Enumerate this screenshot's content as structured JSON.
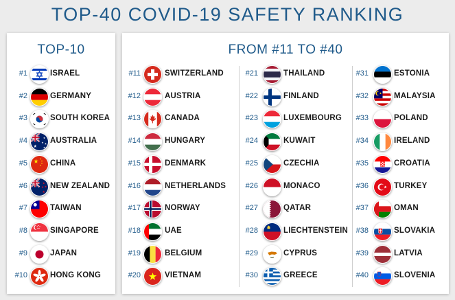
{
  "title": "TOP-40 COVID-19 SAFETY RANKING",
  "left_panel": {
    "heading": "TOP-10",
    "items": [
      {
        "rank": "#1",
        "country": "ISRAEL"
      },
      {
        "rank": "#2",
        "country": "GERMANY"
      },
      {
        "rank": "#3",
        "country": "SOUTH KOREA"
      },
      {
        "rank": "#4",
        "country": "AUSTRALIA"
      },
      {
        "rank": "#5",
        "country": "CHINA"
      },
      {
        "rank": "#6",
        "country": "NEW ZEALAND"
      },
      {
        "rank": "#7",
        "country": "TAIWAN"
      },
      {
        "rank": "#8",
        "country": "SINGAPORE"
      },
      {
        "rank": "#9",
        "country": "JAPAN"
      },
      {
        "rank": "#10",
        "country": "HONG KONG"
      }
    ]
  },
  "right_panel": {
    "heading": "FROM #11 TO #40",
    "columns": [
      [
        {
          "rank": "#11",
          "country": "SWITZERLAND"
        },
        {
          "rank": "#12",
          "country": "AUSTRIA"
        },
        {
          "rank": "#13",
          "country": "CANADA"
        },
        {
          "rank": "#14",
          "country": "HUNGARY"
        },
        {
          "rank": "#15",
          "country": "DENMARK"
        },
        {
          "rank": "#16",
          "country": "NETHERLANDS"
        },
        {
          "rank": "#17",
          "country": "NORWAY"
        },
        {
          "rank": "#18",
          "country": "UAE"
        },
        {
          "rank": "#19",
          "country": "BELGIUM"
        },
        {
          "rank": "#20",
          "country": "VIETNAM"
        }
      ],
      [
        {
          "rank": "#21",
          "country": "THAILAND"
        },
        {
          "rank": "#22",
          "country": "FINLAND"
        },
        {
          "rank": "#23",
          "country": "LUXEMBOURG"
        },
        {
          "rank": "#24",
          "country": "KUWAIT"
        },
        {
          "rank": "#25",
          "country": "CZECHIA"
        },
        {
          "rank": "#26",
          "country": "MONACO"
        },
        {
          "rank": "#27",
          "country": "QATAR"
        },
        {
          "rank": "#28",
          "country": "LIECHTENSTEIN"
        },
        {
          "rank": "#29",
          "country": "CYPRUS"
        },
        {
          "rank": "#30",
          "country": "GREECE"
        }
      ],
      [
        {
          "rank": "#31",
          "country": "ESTONIA"
        },
        {
          "rank": "#32",
          "country": "MALAYSIA"
        },
        {
          "rank": "#33",
          "country": "POLAND"
        },
        {
          "rank": "#34",
          "country": "IRELAND"
        },
        {
          "rank": "#35",
          "country": "CROATIA"
        },
        {
          "rank": "#36",
          "country": "TURKEY"
        },
        {
          "rank": "#37",
          "country": "OMAN"
        },
        {
          "rank": "#38",
          "country": "SLOVAKIA"
        },
        {
          "rank": "#39",
          "country": "LATVIA"
        },
        {
          "rank": "#40",
          "country": "SLOVENIA"
        }
      ]
    ]
  },
  "colors": {
    "title": "#1f5a8a",
    "rank": "#1f5a8a",
    "country": "#1a1a1a",
    "panel": "#ffffff",
    "background": "#ececec"
  }
}
